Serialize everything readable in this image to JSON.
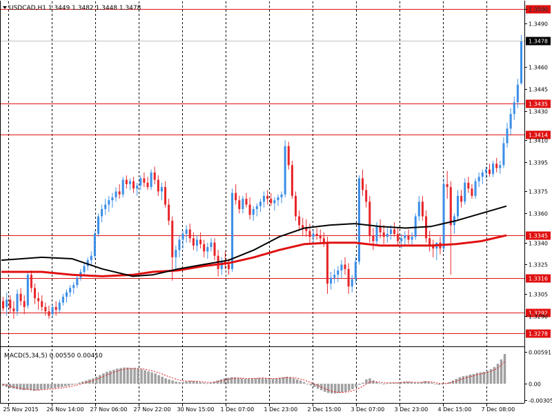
{
  "window": {
    "symbol_info": "USDCAD,H1  1.3449 1.3482 1.3448 1.3478",
    "collapse_icon": "triangle-down-icon"
  },
  "colors": {
    "bull": "#3d8fe6",
    "bear": "#e8262a",
    "ma_fast": "#000000",
    "ma_slow": "#e01010",
    "level_line": "#e01010",
    "grid": "#000000",
    "macd_hist": "#a0a0a0",
    "macd_signal": "#e01010",
    "label_bg": "#e01010",
    "bid_label_bg": "#000000"
  },
  "chart_data": {
    "type": "candlestick",
    "symbol": "USDCAD",
    "timeframe": "H1",
    "ohlc_last": {
      "open": 1.3449,
      "high": 1.3482,
      "low": 1.3448,
      "close": 1.3478
    },
    "price_axis": {
      "ylim": [
        1.327,
        1.3505
      ],
      "ticks": [
        {
          "value": 1.35,
          "label": "1.3500"
        },
        {
          "value": 1.349,
          "label": "1.3490"
        },
        {
          "value": 1.346,
          "label": "1.3460"
        },
        {
          "value": 1.3445,
          "label": "1.3445"
        },
        {
          "value": 1.343,
          "label": "1.3430"
        },
        {
          "value": 1.341,
          "label": "1.3410"
        },
        {
          "value": 1.3395,
          "label": "1.3395"
        },
        {
          "value": 1.3375,
          "label": "1.3375"
        },
        {
          "value": 1.336,
          "label": "1.3360"
        },
        {
          "value": 1.334,
          "label": "1.3340"
        },
        {
          "value": 1.3325,
          "label": "1.3325"
        },
        {
          "value": 1.3305,
          "label": "1.3305"
        },
        {
          "value": 1.329,
          "label": "1.3290"
        }
      ]
    },
    "horizontal_levels": [
      {
        "value": 1.35,
        "label": "1.3500"
      },
      {
        "value": 1.3435,
        "label": "1.3435"
      },
      {
        "value": 1.3414,
        "label": "1.3414"
      },
      {
        "value": 1.3345,
        "label": "1.3345"
      },
      {
        "value": 1.3316,
        "label": "1.3316"
      },
      {
        "value": 1.3292,
        "label": "1.3292"
      },
      {
        "value": 1.3278,
        "label": "1.3278"
      }
    ],
    "current_price": {
      "value": 1.3478,
      "label": "1.3478"
    },
    "time_axis": {
      "labels": [
        "25 Nov 2015",
        "26 Nov 14:00",
        "27 Nov 06:00",
        "27 Nov 22:00",
        "30 Nov 15:00",
        "1 Dec 07:00",
        "1 Dec 23:00",
        "2 Dec 15:00",
        "3 Dec 07:00",
        "3 Dec 23:00",
        "4 Dec 15:00",
        "7 Dec 08:00"
      ]
    },
    "bars": [
      [
        1.33,
        1.3303,
        1.3293,
        1.3295
      ],
      [
        1.3296,
        1.3306,
        1.329,
        1.3301
      ],
      [
        1.3301,
        1.3304,
        1.3292,
        1.3295
      ],
      [
        1.3295,
        1.33,
        1.3288,
        1.3293
      ],
      [
        1.3293,
        1.3308,
        1.329,
        1.3305
      ],
      [
        1.3305,
        1.3309,
        1.3297,
        1.33
      ],
      [
        1.33,
        1.3304,
        1.3291,
        1.3296
      ],
      [
        1.3297,
        1.332,
        1.3295,
        1.3318
      ],
      [
        1.3318,
        1.3321,
        1.3306,
        1.3309
      ],
      [
        1.3309,
        1.3312,
        1.3298,
        1.3302
      ],
      [
        1.3302,
        1.3306,
        1.3294,
        1.33
      ],
      [
        1.33,
        1.3304,
        1.3293,
        1.3296
      ],
      [
        1.3296,
        1.3299,
        1.329,
        1.3293
      ],
      [
        1.3293,
        1.3297,
        1.3288,
        1.329
      ],
      [
        1.3291,
        1.3298,
        1.3289,
        1.3296
      ],
      [
        1.3296,
        1.33,
        1.329,
        1.3294
      ],
      [
        1.3294,
        1.3301,
        1.3292,
        1.3299
      ],
      [
        1.3299,
        1.3305,
        1.3297,
        1.3303
      ],
      [
        1.3303,
        1.3308,
        1.3299,
        1.3306
      ],
      [
        1.3306,
        1.3311,
        1.3303,
        1.3309
      ],
      [
        1.3309,
        1.3313,
        1.3305,
        1.3311
      ],
      [
        1.3311,
        1.3318,
        1.3309,
        1.3316
      ],
      [
        1.3316,
        1.3322,
        1.3314,
        1.332
      ],
      [
        1.332,
        1.3326,
        1.3318,
        1.3324
      ],
      [
        1.3324,
        1.333,
        1.3321,
        1.3328
      ],
      [
        1.3328,
        1.3334,
        1.3325,
        1.3331
      ],
      [
        1.3331,
        1.3348,
        1.3329,
        1.3346
      ],
      [
        1.3346,
        1.336,
        1.3344,
        1.3358
      ],
      [
        1.3358,
        1.3366,
        1.3354,
        1.3363
      ],
      [
        1.3363,
        1.337,
        1.3359,
        1.3366
      ],
      [
        1.3366,
        1.3372,
        1.3361,
        1.3369
      ],
      [
        1.3369,
        1.3374,
        1.3364,
        1.3371
      ],
      [
        1.3371,
        1.3378,
        1.3368,
        1.3375
      ],
      [
        1.3375,
        1.338,
        1.337,
        1.3373
      ],
      [
        1.3373,
        1.3385,
        1.3371,
        1.3383
      ],
      [
        1.3383,
        1.3386,
        1.3377,
        1.338
      ],
      [
        1.338,
        1.3384,
        1.3376,
        1.3382
      ],
      [
        1.3382,
        1.3385,
        1.3374,
        1.3377
      ],
      [
        1.3377,
        1.3381,
        1.3372,
        1.3379
      ],
      [
        1.3379,
        1.3386,
        1.3376,
        1.3384
      ],
      [
        1.3384,
        1.3388,
        1.3378,
        1.3381
      ],
      [
        1.3381,
        1.3385,
        1.3376,
        1.3378
      ],
      [
        1.3378,
        1.339,
        1.3376,
        1.3388
      ],
      [
        1.3388,
        1.3392,
        1.338,
        1.3383
      ],
      [
        1.3383,
        1.3386,
        1.3372,
        1.3375
      ],
      [
        1.3375,
        1.3381,
        1.3369,
        1.3378
      ],
      [
        1.3378,
        1.3382,
        1.3364,
        1.3366
      ],
      [
        1.3366,
        1.337,
        1.3352,
        1.3355
      ],
      [
        1.3355,
        1.3358,
        1.3314,
        1.333
      ],
      [
        1.333,
        1.3338,
        1.3322,
        1.3335
      ],
      [
        1.3335,
        1.3345,
        1.333,
        1.3342
      ],
      [
        1.3342,
        1.3348,
        1.3336,
        1.3346
      ],
      [
        1.3346,
        1.3352,
        1.334,
        1.3349
      ],
      [
        1.3349,
        1.3353,
        1.334,
        1.3343
      ],
      [
        1.3343,
        1.3347,
        1.3335,
        1.3338
      ],
      [
        1.3338,
        1.3345,
        1.3334,
        1.3342
      ],
      [
        1.3342,
        1.3347,
        1.3336,
        1.3339
      ],
      [
        1.3339,
        1.3342,
        1.333,
        1.3334
      ],
      [
        1.3334,
        1.334,
        1.3329,
        1.3337
      ],
      [
        1.3337,
        1.3343,
        1.3334,
        1.334
      ],
      [
        1.334,
        1.3343,
        1.3328,
        1.3331
      ],
      [
        1.3331,
        1.3335,
        1.3317,
        1.3322
      ],
      [
        1.3322,
        1.333,
        1.3318,
        1.3327
      ],
      [
        1.3327,
        1.3334,
        1.3322,
        1.3325
      ],
      [
        1.3325,
        1.3329,
        1.3318,
        1.3322
      ],
      [
        1.3322,
        1.3377,
        1.332,
        1.3374
      ],
      [
        1.3374,
        1.338,
        1.3366,
        1.3369
      ],
      [
        1.3369,
        1.3372,
        1.336,
        1.3363
      ],
      [
        1.3363,
        1.3372,
        1.336,
        1.337
      ],
      [
        1.337,
        1.3374,
        1.3364,
        1.3366
      ],
      [
        1.3366,
        1.3371,
        1.3356,
        1.3359
      ],
      [
        1.3359,
        1.3365,
        1.3355,
        1.3363
      ],
      [
        1.3363,
        1.3367,
        1.3358,
        1.3365
      ],
      [
        1.3365,
        1.337,
        1.3361,
        1.3368
      ],
      [
        1.3368,
        1.3375,
        1.3364,
        1.3372
      ],
      [
        1.3372,
        1.3376,
        1.3366,
        1.337
      ],
      [
        1.337,
        1.3374,
        1.3365,
        1.3367
      ],
      [
        1.3367,
        1.3371,
        1.3362,
        1.3369
      ],
      [
        1.3369,
        1.3373,
        1.3365,
        1.3371
      ],
      [
        1.3371,
        1.3375,
        1.3367,
        1.3373
      ],
      [
        1.3373,
        1.341,
        1.3371,
        1.3406
      ],
      [
        1.3406,
        1.3409,
        1.339,
        1.3393
      ],
      [
        1.3393,
        1.3396,
        1.337,
        1.3372
      ],
      [
        1.3372,
        1.3375,
        1.3355,
        1.3358
      ],
      [
        1.3358,
        1.3362,
        1.3348,
        1.3352
      ],
      [
        1.3352,
        1.3357,
        1.3345,
        1.335
      ],
      [
        1.335,
        1.3356,
        1.3344,
        1.3348
      ],
      [
        1.3348,
        1.3353,
        1.334,
        1.3344
      ],
      [
        1.3344,
        1.3349,
        1.3339,
        1.3346
      ],
      [
        1.3346,
        1.335,
        1.3342,
        1.3345
      ],
      [
        1.3345,
        1.3349,
        1.334,
        1.3343
      ],
      [
        1.3343,
        1.3347,
        1.3337,
        1.334
      ],
      [
        1.334,
        1.3344,
        1.3305,
        1.3312
      ],
      [
        1.3312,
        1.332,
        1.3308,
        1.3316
      ],
      [
        1.3316,
        1.3322,
        1.3312,
        1.3318
      ],
      [
        1.3318,
        1.3324,
        1.3313,
        1.3321
      ],
      [
        1.3321,
        1.3328,
        1.3316,
        1.3325
      ],
      [
        1.3325,
        1.333,
        1.3318,
        1.3322
      ],
      [
        1.3322,
        1.3326,
        1.3305,
        1.331
      ],
      [
        1.331,
        1.3318,
        1.3306,
        1.3315
      ],
      [
        1.3315,
        1.333,
        1.3312,
        1.3327
      ],
      [
        1.3327,
        1.3386,
        1.3325,
        1.3384
      ],
      [
        1.3384,
        1.339,
        1.3372,
        1.3376
      ],
      [
        1.3376,
        1.338,
        1.3364,
        1.3368
      ],
      [
        1.3368,
        1.3372,
        1.334,
        1.3345
      ],
      [
        1.3345,
        1.335,
        1.3335,
        1.3341
      ],
      [
        1.3341,
        1.3354,
        1.3338,
        1.3351
      ],
      [
        1.3351,
        1.3356,
        1.3343,
        1.3347
      ],
      [
        1.3347,
        1.3352,
        1.3339,
        1.3344
      ],
      [
        1.3344,
        1.335,
        1.334,
        1.3346
      ],
      [
        1.3346,
        1.3352,
        1.3342,
        1.3349
      ],
      [
        1.3349,
        1.3354,
        1.3344,
        1.3346
      ],
      [
        1.3346,
        1.335,
        1.3338,
        1.3341
      ],
      [
        1.3341,
        1.3346,
        1.3336,
        1.3343
      ],
      [
        1.3343,
        1.3348,
        1.3338,
        1.3345
      ],
      [
        1.3345,
        1.3349,
        1.3339,
        1.3342
      ],
      [
        1.3342,
        1.3347,
        1.3338,
        1.3344
      ],
      [
        1.3344,
        1.336,
        1.3342,
        1.3358
      ],
      [
        1.3358,
        1.3372,
        1.3355,
        1.3368
      ],
      [
        1.3368,
        1.3372,
        1.3355,
        1.3358
      ],
      [
        1.3358,
        1.3362,
        1.334,
        1.3343
      ],
      [
        1.3343,
        1.3348,
        1.3334,
        1.3338
      ],
      [
        1.3338,
        1.3342,
        1.333,
        1.3336
      ],
      [
        1.3336,
        1.334,
        1.3328,
        1.334
      ],
      [
        1.334,
        1.3344,
        1.3332,
        1.3336
      ],
      [
        1.3336,
        1.3384,
        1.3334,
        1.338
      ],
      [
        1.338,
        1.3389,
        1.337,
        1.3378
      ],
      [
        1.3378,
        1.3382,
        1.3318,
        1.3352
      ],
      [
        1.3352,
        1.336,
        1.3346,
        1.3358
      ],
      [
        1.3358,
        1.3376,
        1.3355,
        1.3372
      ],
      [
        1.3372,
        1.3376,
        1.3364,
        1.3368
      ],
      [
        1.3368,
        1.3384,
        1.3366,
        1.3381
      ],
      [
        1.3381,
        1.3385,
        1.3374,
        1.3377
      ],
      [
        1.3377,
        1.338,
        1.337,
        1.3372
      ],
      [
        1.3372,
        1.3384,
        1.337,
        1.3382
      ],
      [
        1.3382,
        1.3388,
        1.3378,
        1.3385
      ],
      [
        1.3385,
        1.339,
        1.338,
        1.3388
      ],
      [
        1.3388,
        1.3392,
        1.3384,
        1.339
      ],
      [
        1.339,
        1.3394,
        1.3385,
        1.3387
      ],
      [
        1.3387,
        1.3396,
        1.3385,
        1.3394
      ],
      [
        1.3394,
        1.3398,
        1.3388,
        1.3391
      ],
      [
        1.3391,
        1.3396,
        1.3387,
        1.3393
      ],
      [
        1.3393,
        1.3412,
        1.3391,
        1.3408
      ],
      [
        1.3408,
        1.3422,
        1.3405,
        1.3418
      ],
      [
        1.3418,
        1.3432,
        1.3414,
        1.3428
      ],
      [
        1.3428,
        1.344,
        1.3424,
        1.3436
      ],
      [
        1.3436,
        1.3452,
        1.3432,
        1.3448
      ],
      [
        1.3449,
        1.3482,
        1.3448,
        1.3478
      ]
    ],
    "ma_fast": [
      [
        0,
        1.3328
      ],
      [
        0.08,
        1.333
      ],
      [
        0.14,
        1.3329
      ],
      [
        0.2,
        1.3322
      ],
      [
        0.26,
        1.3317
      ],
      [
        0.3,
        1.3318
      ],
      [
        0.35,
        1.3322
      ],
      [
        0.4,
        1.3325
      ],
      [
        0.45,
        1.3328
      ],
      [
        0.5,
        1.3335
      ],
      [
        0.55,
        1.3344
      ],
      [
        0.6,
        1.335
      ],
      [
        0.65,
        1.3352
      ],
      [
        0.7,
        1.3353
      ],
      [
        0.75,
        1.3351
      ],
      [
        0.8,
        1.335
      ],
      [
        0.85,
        1.3351
      ],
      [
        0.9,
        1.3355
      ],
      [
        0.95,
        1.336
      ],
      [
        1.0,
        1.3365
      ]
    ],
    "ma_slow": [
      [
        0,
        1.332
      ],
      [
        0.08,
        1.332
      ],
      [
        0.14,
        1.3318
      ],
      [
        0.2,
        1.3317
      ],
      [
        0.26,
        1.3318
      ],
      [
        0.3,
        1.332
      ],
      [
        0.35,
        1.3321
      ],
      [
        0.4,
        1.3324
      ],
      [
        0.45,
        1.3326
      ],
      [
        0.5,
        1.333
      ],
      [
        0.55,
        1.3335
      ],
      [
        0.6,
        1.3339
      ],
      [
        0.65,
        1.334
      ],
      [
        0.7,
        1.334
      ],
      [
        0.75,
        1.3338
      ],
      [
        0.8,
        1.3338
      ],
      [
        0.85,
        1.3338
      ],
      [
        0.9,
        1.3339
      ],
      [
        0.95,
        1.3341
      ],
      [
        1.0,
        1.3345
      ]
    ],
    "macd": {
      "label": "MACD(5,34,5) 0.00550 0.00410",
      "ylim": [
        -0.0033,
        0.0064
      ],
      "ticks": [
        {
          "value": 0.00591,
          "label": "0.00591"
        },
        {
          "value": 0.0,
          "label": "0.00"
        },
        {
          "value": -0.00305,
          "label": "-0.00305"
        }
      ],
      "histogram": [
        -0.0004,
        -0.0006,
        -0.0008,
        -0.0009,
        -0.001,
        -0.0011,
        -0.0012,
        -0.0011,
        -0.0012,
        -0.0013,
        -0.0012,
        -0.0011,
        -0.001,
        -0.0009,
        -0.0009,
        -0.0008,
        -0.0007,
        -0.0006,
        -0.0005,
        -0.0004,
        -0.0002,
        0.0,
        0.0002,
        0.0004,
        0.0006,
        0.0008,
        0.001,
        0.0013,
        0.0016,
        0.0019,
        0.0022,
        0.0024,
        0.0026,
        0.0028,
        0.0029,
        0.003,
        0.003,
        0.0029,
        0.0029,
        0.0028,
        0.0027,
        0.0025,
        0.0023,
        0.0021,
        0.0019,
        0.0016,
        0.0013,
        0.001,
        0.0008,
        0.0006,
        0.0004,
        0.0003,
        0.0003,
        0.0004,
        0.0005,
        0.0005,
        0.0004,
        0.0003,
        0.0002,
        0.0001,
        0.0002,
        0.0004,
        0.0006,
        0.0008,
        0.001,
        0.0011,
        0.0012,
        0.0012,
        0.0011,
        0.001,
        0.0009,
        0.0009,
        0.001,
        0.001,
        0.0011,
        0.0011,
        0.001,
        0.0009,
        0.0009,
        0.001,
        0.0011,
        0.0012,
        0.0013,
        0.0012,
        0.001,
        0.0008,
        0.0006,
        0.0003,
        0.0,
        -0.0003,
        -0.0006,
        -0.0009,
        -0.0012,
        -0.0015,
        -0.0017,
        -0.0018,
        -0.0018,
        -0.0017,
        -0.0016,
        -0.0015,
        -0.0013,
        -0.001,
        -0.0006,
        -0.0002,
        0.0002,
        0.0008,
        0.001,
        0.0006,
        0.0003,
        0.0001,
        0.0,
        0.0001,
        0.0002,
        0.0002,
        0.0002,
        0.0003,
        0.0004,
        0.0004,
        0.0003,
        0.0002,
        0.0002,
        0.0003,
        0.0005,
        0.0004,
        0.0002,
        0.0,
        -0.0002,
        -0.0001,
        0.0001,
        0.0003,
        0.0006,
        0.0009,
        0.0012,
        0.0014,
        0.0015,
        0.0017,
        0.0018,
        0.002,
        0.0021,
        0.0022,
        0.0024,
        0.0027,
        0.0031,
        0.0037,
        0.0045,
        0.0055
      ]
    }
  }
}
